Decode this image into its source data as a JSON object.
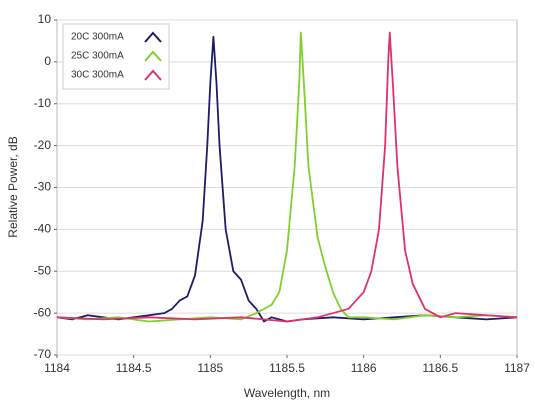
{
  "chart_data": {
    "type": "line",
    "x_label": "Wavelength, nm",
    "y_label": "Relative Power, dB",
    "xlim": [
      1184,
      1187
    ],
    "xticks": [
      1184,
      1184.5,
      1185,
      1185.5,
      1186,
      1186.5,
      1187
    ],
    "ylim": [
      -70,
      10
    ],
    "yticks": [
      10,
      0,
      -10,
      -20,
      -30,
      -40,
      -50,
      -60,
      -70
    ],
    "grid": "y",
    "legend": "upper left",
    "series": [
      {
        "name": "20C 300mA",
        "color": "#1c1c6b",
        "x": [
          1184,
          1184.1,
          1184.2,
          1184.3,
          1184.4,
          1184.5,
          1184.6,
          1184.7,
          1184.75,
          1184.8,
          1184.85,
          1184.9,
          1184.95,
          1184.98,
          1185.0,
          1185.02,
          1185.04,
          1185.06,
          1185.1,
          1185.15,
          1185.2,
          1185.25,
          1185.3,
          1185.35,
          1185.4,
          1185.5,
          1185.6,
          1185.8,
          1186,
          1186.2,
          1186.4,
          1186.6,
          1186.8,
          1187
        ],
        "values": [
          -61,
          -61.5,
          -60.5,
          -61,
          -61.5,
          -61,
          -60.5,
          -60,
          -59,
          -57,
          -56,
          -51,
          -38,
          -20,
          -5,
          6,
          -5,
          -20,
          -40,
          -50,
          -52,
          -57,
          -59,
          -62,
          -61,
          -62,
          -61.5,
          -61,
          -61.5,
          -61,
          -60.5,
          -61,
          -61.5,
          -61
        ]
      },
      {
        "name": "25C 300mA",
        "color": "#7fd02e",
        "x": [
          1184,
          1184.2,
          1184.4,
          1184.6,
          1184.8,
          1185,
          1185.2,
          1185.3,
          1185.4,
          1185.45,
          1185.5,
          1185.55,
          1185.58,
          1185.59,
          1185.61,
          1185.64,
          1185.7,
          1185.75,
          1185.8,
          1185.85,
          1185.9,
          1186,
          1186.2,
          1186.4,
          1186.6,
          1186.8,
          1187
        ],
        "values": [
          -61,
          -61.5,
          -61,
          -62,
          -61.5,
          -61,
          -61.5,
          -60,
          -58,
          -55,
          -45,
          -25,
          -5,
          7,
          -5,
          -25,
          -42,
          -49,
          -55,
          -59,
          -61,
          -61,
          -61.5,
          -60.5,
          -61,
          -60.5,
          -61
        ]
      },
      {
        "name": "30C 300mA",
        "color": "#e0306e",
        "x": [
          1184,
          1184.3,
          1184.6,
          1184.9,
          1185.2,
          1185.5,
          1185.7,
          1185.9,
          1186.0,
          1186.05,
          1186.1,
          1186.14,
          1186.16,
          1186.17,
          1186.19,
          1186.22,
          1186.27,
          1186.32,
          1186.4,
          1186.5,
          1186.6,
          1186.8,
          1187
        ],
        "values": [
          -61,
          -61.5,
          -61,
          -61.5,
          -61,
          -62,
          -61,
          -59,
          -55,
          -50,
          -40,
          -20,
          0,
          7,
          -5,
          -25,
          -45,
          -53,
          -59,
          -61,
          -60,
          -60.5,
          -61
        ]
      }
    ]
  }
}
